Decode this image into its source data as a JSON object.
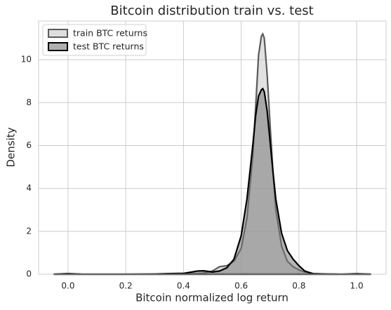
{
  "chart_data": {
    "type": "area",
    "title": "Bitcoin distribution train vs. test",
    "x_label": "Bitcoin normalized log return",
    "y_label": "Density",
    "x": [
      -0.05,
      0,
      0.05,
      0.1,
      0.2,
      0.3,
      0.35,
      0.4,
      0.45,
      0.47,
      0.5,
      0.525,
      0.55,
      0.575,
      0.6,
      0.62,
      0.64,
      0.65,
      0.66,
      0.67,
      0.675,
      0.68,
      0.69,
      0.7,
      0.71,
      0.72,
      0.74,
      0.76,
      0.78,
      0.8,
      0.82,
      0.85,
      0.9,
      0.95,
      1.0,
      1.05
    ],
    "series": [
      {
        "name": "train BTC returns",
        "color": "#5a5a5a",
        "fill_color": "#c8c8c8",
        "values": [
          0,
          0.03,
          0,
          0,
          0,
          0,
          0.02,
          0.02,
          0.03,
          0.05,
          0.15,
          0.35,
          0.4,
          0.6,
          1.2,
          2.6,
          5.5,
          7.8,
          10.2,
          11.1,
          11.2,
          11.0,
          9.3,
          7.0,
          4.8,
          3.0,
          1.3,
          0.6,
          0.35,
          0.2,
          0.1,
          0.03,
          0,
          0,
          0.03,
          0
        ]
      },
      {
        "name": "test BTC returns",
        "color": "#000000",
        "fill_color": "#7a7a7a",
        "values": [
          0,
          0.02,
          0,
          0,
          0,
          0.01,
          0.03,
          0.04,
          0.15,
          0.16,
          0.1,
          0.15,
          0.3,
          0.7,
          1.8,
          3.5,
          6.0,
          7.4,
          8.3,
          8.6,
          8.65,
          8.5,
          7.6,
          6.2,
          4.8,
          3.5,
          1.9,
          1.1,
          0.7,
          0.4,
          0.15,
          0.02,
          0.01,
          0,
          0.01,
          0
        ]
      }
    ],
    "xlim": [
      -0.102,
      1.102
    ],
    "ylim": [
      0,
      11.8
    ],
    "xticks": [
      {
        "value": 0,
        "label": "0.0"
      },
      {
        "value": 0.2,
        "label": "0.2"
      },
      {
        "value": 0.4,
        "label": "0.4"
      },
      {
        "value": 0.6,
        "label": "0.6"
      },
      {
        "value": 0.8,
        "label": "0.8"
      },
      {
        "value": 1,
        "label": "1.0"
      }
    ],
    "yticks": [
      0,
      2,
      4,
      6,
      8,
      10
    ],
    "grid": true,
    "legend_position": "upper-left"
  }
}
